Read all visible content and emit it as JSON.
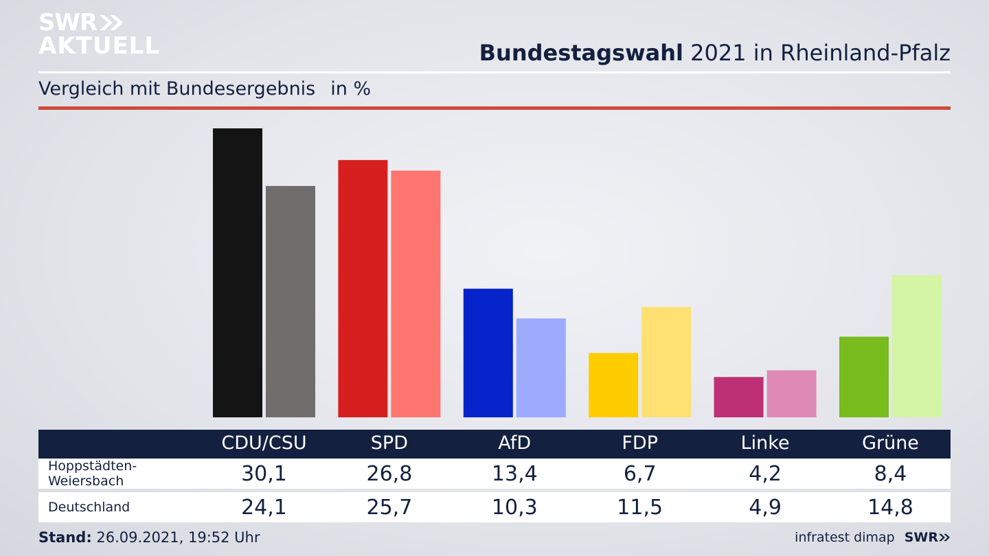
{
  "logo": {
    "line1": "SWR",
    "line2": "AKTUELL"
  },
  "header": {
    "title_bold": "Bundestagswahl",
    "title_rest": " 2021 in Rheinland-Pfalz",
    "subtitle": "Vergleich mit Bundesergebnis",
    "unit": "in %"
  },
  "chart_data": {
    "type": "bar",
    "categories": [
      "CDU/CSU",
      "SPD",
      "AfD",
      "FDP",
      "Linke",
      "Grüne"
    ],
    "series": [
      {
        "name": "Hoppstädten-Weiersbach",
        "values": [
          30.1,
          26.8,
          13.4,
          6.7,
          4.2,
          8.4
        ],
        "colors": [
          "#141414",
          "#d71f1f",
          "#0523c8",
          "#ffcc00",
          "#be3075",
          "#78bc1e"
        ]
      },
      {
        "name": "Deutschland",
        "values": [
          24.1,
          25.7,
          10.3,
          11.5,
          4.9,
          14.8
        ],
        "colors": [
          "#706e6c",
          "#ff7570",
          "#9dabff",
          "#ffe173",
          "#de89b6",
          "#d3f5a4"
        ]
      }
    ],
    "ylim": [
      0,
      30.1
    ],
    "grid": false,
    "legend": "table-below"
  },
  "table": {
    "rows": [
      {
        "label": "Hoppstädten-Weiersbach",
        "values": [
          "30,1",
          "26,8",
          "13,4",
          "6,7",
          "4,2",
          "8,4"
        ]
      },
      {
        "label": "Deutschland",
        "values": [
          "24,1",
          "25,7",
          "10,3",
          "11,5",
          "4,9",
          "14,8"
        ]
      }
    ]
  },
  "footer": {
    "stand_label": "Stand:",
    "stand_value": " 26.09.2021, 19:52 Uhr",
    "source": "infratest dimap",
    "brand": "SWR"
  },
  "colors": {
    "navy": "#13203f",
    "accent_red": "#cf4b3c"
  }
}
